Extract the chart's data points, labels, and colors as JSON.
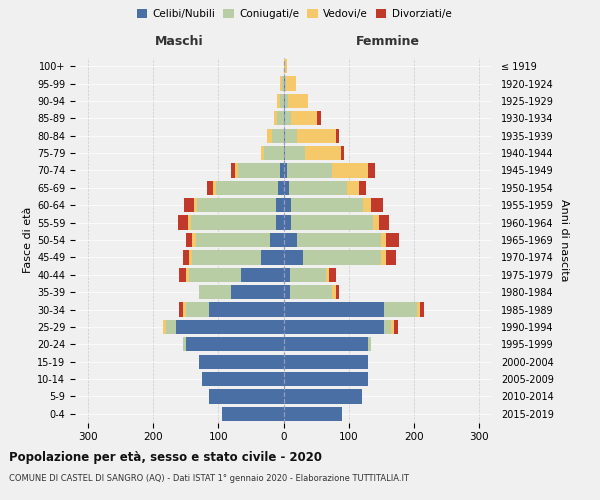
{
  "age_groups": [
    "0-4",
    "5-9",
    "10-14",
    "15-19",
    "20-24",
    "25-29",
    "30-34",
    "35-39",
    "40-44",
    "45-49",
    "50-54",
    "55-59",
    "60-64",
    "65-69",
    "70-74",
    "75-79",
    "80-84",
    "85-89",
    "90-94",
    "95-99",
    "100+"
  ],
  "birth_years": [
    "2015-2019",
    "2010-2014",
    "2005-2009",
    "2000-2004",
    "1995-1999",
    "1990-1994",
    "1985-1989",
    "1980-1984",
    "1975-1979",
    "1970-1974",
    "1965-1969",
    "1960-1964",
    "1955-1959",
    "1950-1954",
    "1945-1949",
    "1940-1944",
    "1935-1939",
    "1930-1934",
    "1925-1929",
    "1920-1924",
    "≤ 1919"
  ],
  "male": {
    "celibi": [
      95,
      115,
      125,
      130,
      150,
      165,
      115,
      80,
      65,
      35,
      20,
      12,
      12,
      8,
      5,
      0,
      0,
      0,
      0,
      0,
      0
    ],
    "coniugati": [
      0,
      0,
      0,
      0,
      5,
      15,
      35,
      50,
      80,
      105,
      115,
      130,
      120,
      95,
      65,
      30,
      18,
      10,
      5,
      2,
      0
    ],
    "vedovi": [
      0,
      0,
      0,
      0,
      0,
      5,
      5,
      0,
      5,
      5,
      5,
      5,
      5,
      5,
      5,
      5,
      8,
      5,
      5,
      3,
      0
    ],
    "divorziati": [
      0,
      0,
      0,
      0,
      0,
      0,
      5,
      0,
      10,
      10,
      10,
      15,
      15,
      10,
      5,
      0,
      0,
      0,
      0,
      0,
      0
    ]
  },
  "female": {
    "nubili": [
      90,
      120,
      130,
      130,
      130,
      155,
      155,
      10,
      10,
      30,
      20,
      12,
      12,
      8,
      5,
      3,
      2,
      2,
      2,
      2,
      0
    ],
    "coniugate": [
      0,
      0,
      0,
      0,
      5,
      10,
      50,
      65,
      55,
      120,
      130,
      125,
      110,
      90,
      70,
      30,
      18,
      10,
      5,
      2,
      0
    ],
    "vedove": [
      0,
      0,
      0,
      0,
      0,
      5,
      5,
      5,
      5,
      8,
      8,
      10,
      12,
      18,
      55,
      55,
      60,
      40,
      30,
      15,
      5
    ],
    "divorziate": [
      0,
      0,
      0,
      0,
      0,
      5,
      5,
      5,
      10,
      15,
      20,
      15,
      18,
      10,
      10,
      5,
      5,
      5,
      0,
      0,
      0
    ]
  },
  "colors": {
    "celibi": "#4a6fa5",
    "coniugati": "#b8cda4",
    "vedovi": "#f5c96a",
    "divorziati": "#c0392b"
  },
  "title": "Popolazione per età, sesso e stato civile - 2020",
  "subtitle": "COMUNE DI CASTEL DI SANGRO (AQ) - Dati ISTAT 1° gennaio 2020 - Elaborazione TUTTITALIA.IT",
  "xlabel_left": "Maschi",
  "xlabel_right": "Femmine",
  "ylabel_left": "Fasce di età",
  "ylabel_right": "Anni di nascita",
  "xlim": 320,
  "bg_color": "#f0f0f0",
  "grid_color": "#cccccc"
}
